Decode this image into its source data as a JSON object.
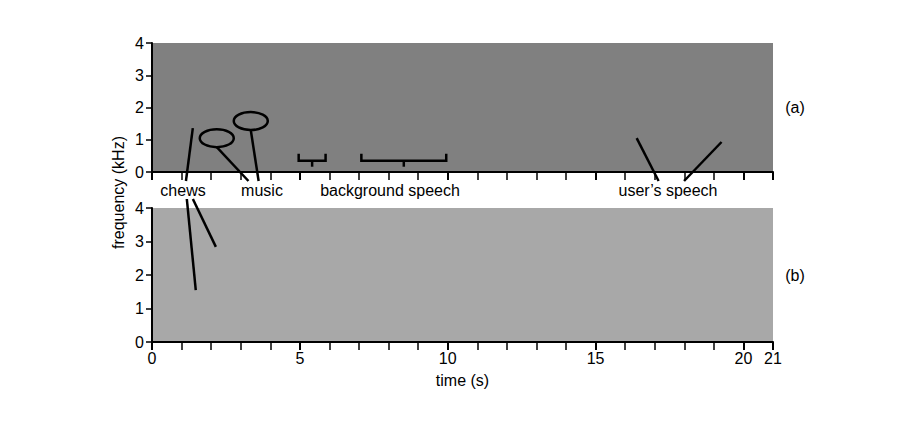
{
  "chart_data": {
    "type": "spectrogram",
    "xlabel": "time (s)",
    "ylabel": "frequency (kHz)",
    "xlim": [
      0,
      21
    ],
    "xticks": [
      0,
      5,
      10,
      15,
      20
    ],
    "panels": [
      {
        "label": "(a)",
        "ylim": [
          0,
          4
        ],
        "yticks": [
          0,
          1,
          2,
          3,
          4
        ]
      },
      {
        "label": "(b)",
        "ylim": [
          0,
          4
        ],
        "yticks": [
          0,
          1,
          2,
          3,
          4
        ]
      }
    ],
    "annotations": [
      {
        "text": "chews",
        "marker": "line",
        "targets": [
          {
            "panel": 0,
            "x": 1.38,
            "y": 1.36
          },
          {
            "panel": 1,
            "x": 2.16,
            "y": 2.84
          },
          {
            "panel": 1,
            "x": 1.48,
            "y": 1.55
          }
        ]
      },
      {
        "text": "music",
        "marker": "ellipse",
        "targets": [
          {
            "panel": 0,
            "x": 2.19,
            "y": 1.05
          },
          {
            "panel": 0,
            "x": 3.34,
            "y": 1.58
          }
        ]
      },
      {
        "text": "background speech",
        "marker": "bracket",
        "ranges": [
          {
            "panel": 0,
            "x": [
              4.96,
              5.87
            ],
            "y": 0.35
          },
          {
            "panel": 0,
            "x": [
              7.08,
              9.95
            ],
            "y": 0.35
          }
        ]
      },
      {
        "text": "user’s speech",
        "marker": "line",
        "targets": [
          {
            "panel": 0,
            "x": 16.39,
            "y": 1.05
          },
          {
            "panel": 0,
            "x": 19.26,
            "y": 0.93
          }
        ]
      }
    ]
  }
}
